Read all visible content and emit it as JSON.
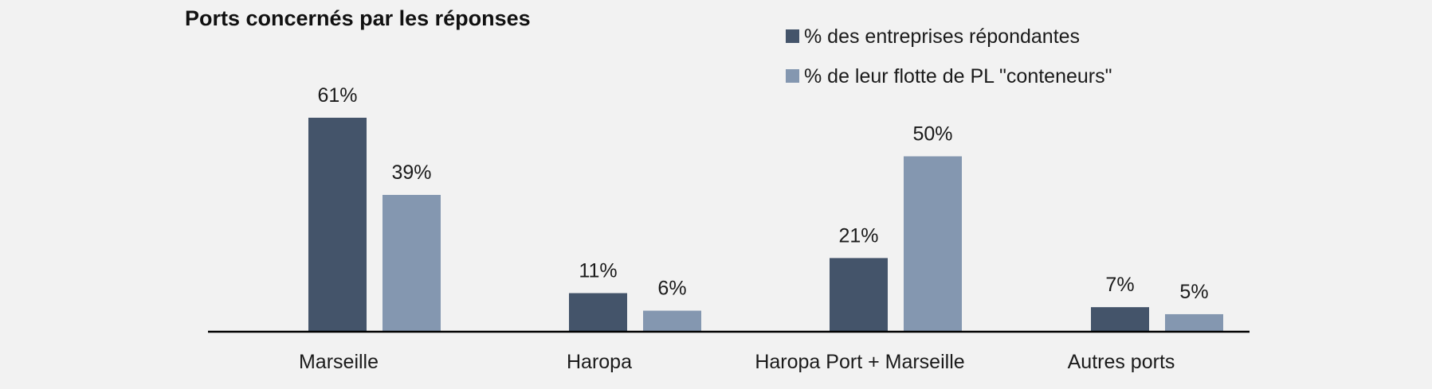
{
  "chart_data": {
    "type": "bar",
    "title": "Ports concernés par les réponses",
    "xlabel": "",
    "ylabel": "",
    "categories": [
      "Marseille",
      "Haropa",
      "Haropa Port + Marseille",
      "Autres ports"
    ],
    "series": [
      {
        "name": "% des entreprises répondantes",
        "color": "#44546a",
        "values": [
          61,
          11,
          21,
          7
        ],
        "labels": [
          "61%",
          "11%",
          "21%",
          "7%"
        ]
      },
      {
        "name": "% de leur flotte de PL \"conteneurs\"",
        "color": "#8497b0",
        "values": [
          39,
          6,
          50,
          5
        ],
        "labels": [
          "39%",
          "6%",
          "50%",
          "5%"
        ]
      }
    ],
    "ylim": [
      0,
      61
    ],
    "grid": false,
    "legend_position": "top-right",
    "axis_color": "#000000"
  }
}
